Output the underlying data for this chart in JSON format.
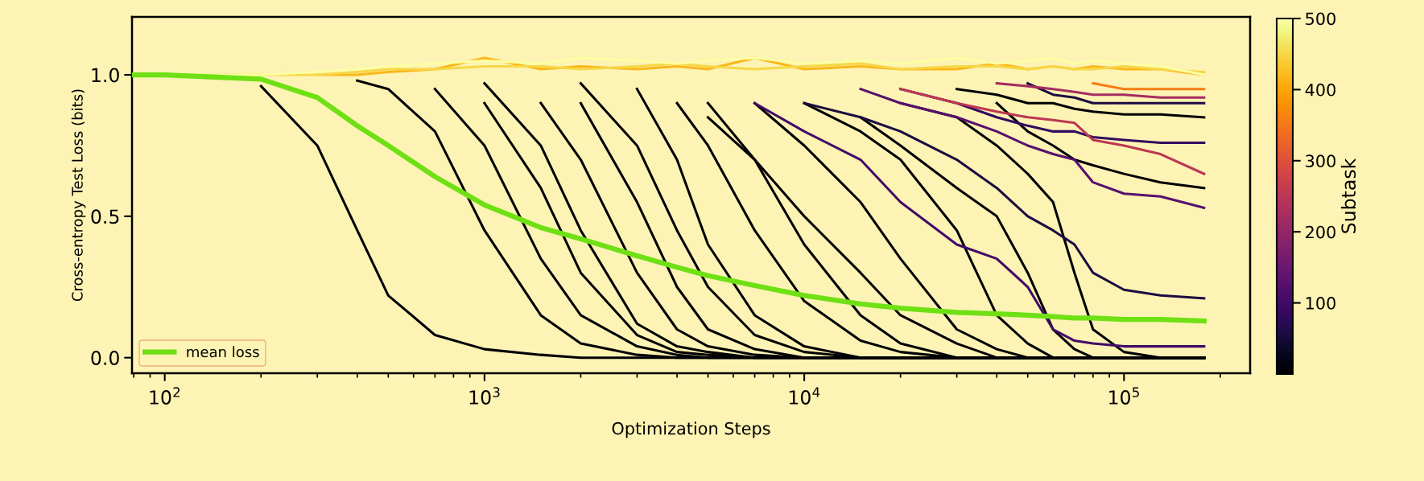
{
  "chart_data": {
    "type": "line",
    "xlabel": "Optimization Steps",
    "ylabel": "Cross-entropy Test Loss (bits)",
    "clabel": "Subtask",
    "log": "x",
    "xlim": [
      79,
      248000
    ],
    "xticks": [
      {
        "value": 100,
        "label": "10$^{2}$"
      },
      {
        "value": 1000,
        "label": "10$^{3}$"
      },
      {
        "value": 10000,
        "label": "10$^{4}$"
      },
      {
        "value": 100000,
        "label": "10$^{5}$"
      }
    ],
    "ylim": [
      -0.055,
      1.205
    ],
    "yticks": [
      {
        "value": 0,
        "label": "0.0"
      },
      {
        "value": 0.5,
        "label": "0.5"
      },
      {
        "value": 1,
        "label": "1.0"
      }
    ],
    "clim": [
      0,
      500
    ],
    "cticks": [
      100,
      200,
      300,
      400,
      500
    ],
    "grid": false,
    "legend": "bottom left",
    "line_style": "solid",
    "x": [
      80,
      100,
      200,
      300,
      400,
      500,
      700,
      1000,
      1500,
      2000,
      3000,
      4000,
      5000,
      7000,
      10000,
      15000,
      20000,
      30000,
      40000,
      50000,
      60000,
      70000,
      80000,
      100000,
      130000,
      178000
    ],
    "series": [
      {
        "color": "#000004",
        "x": [
          200,
          300,
          400,
          500,
          700,
          1000,
          1500,
          2000,
          3000,
          4000,
          5000,
          7000,
          10000,
          15000,
          20000,
          30000,
          40000,
          50000,
          60000,
          70000,
          80000,
          100000,
          130000,
          178000
        ],
        "values": [
          0.96,
          0.75,
          0.45,
          0.22,
          0.08,
          0.03,
          0.01,
          0,
          0,
          0,
          0,
          0,
          0,
          0,
          0,
          0,
          0,
          0,
          0,
          0,
          0,
          0,
          0,
          0
        ]
      },
      {
        "color": "#000004",
        "x": [
          400,
          500,
          700,
          1000,
          1500,
          2000,
          3000,
          4000,
          5000,
          7000,
          10000,
          15000,
          20000,
          30000,
          40000,
          50000,
          60000,
          70000,
          80000,
          100000,
          130000,
          178000
        ],
        "values": [
          0.98,
          0.95,
          0.8,
          0.45,
          0.15,
          0.05,
          0.01,
          0,
          0,
          0,
          0,
          0,
          0,
          0,
          0,
          0,
          0,
          0,
          0,
          0,
          0,
          0
        ]
      },
      {
        "color": "#000004",
        "x": [
          700,
          1000,
          1500,
          2000,
          3000,
          4000,
          5000,
          7000,
          10000,
          15000,
          20000,
          30000,
          40000,
          50000,
          60000,
          70000,
          80000,
          100000,
          130000,
          178000
        ],
        "values": [
          0.95,
          0.75,
          0.35,
          0.15,
          0.04,
          0.01,
          0,
          0,
          0,
          0,
          0,
          0,
          0,
          0,
          0,
          0,
          0,
          0,
          0,
          0
        ]
      },
      {
        "color": "#000004",
        "x": [
          1000,
          1500,
          2000,
          3000,
          4000,
          5000,
          7000,
          10000,
          15000,
          20000,
          30000,
          40000,
          50000,
          60000,
          70000,
          80000,
          100000,
          130000,
          178000
        ],
        "values": [
          0.9,
          0.6,
          0.3,
          0.08,
          0.02,
          0.01,
          0,
          0,
          0,
          0,
          0,
          0,
          0,
          0,
          0,
          0,
          0,
          0,
          0
        ]
      },
      {
        "color": "#000004",
        "x": [
          1000,
          1500,
          2000,
          3000,
          4000,
          5000,
          7000,
          10000,
          15000,
          20000,
          30000,
          40000,
          50000,
          60000,
          70000,
          80000,
          100000,
          130000,
          178000
        ],
        "values": [
          0.97,
          0.75,
          0.45,
          0.12,
          0.04,
          0.02,
          0,
          0,
          0,
          0,
          0,
          0,
          0,
          0,
          0,
          0,
          0,
          0,
          0
        ]
      },
      {
        "color": "#000004",
        "x": [
          1500,
          2000,
          3000,
          4000,
          5000,
          7000,
          10000,
          15000,
          20000,
          30000,
          40000,
          50000,
          60000,
          70000,
          80000,
          100000,
          130000,
          178000
        ],
        "values": [
          0.9,
          0.7,
          0.3,
          0.1,
          0.04,
          0.01,
          0,
          0,
          0,
          0,
          0,
          0,
          0,
          0,
          0,
          0,
          0,
          0
        ]
      },
      {
        "color": "#000004",
        "x": [
          2000,
          3000,
          4000,
          5000,
          7000,
          10000,
          15000,
          20000,
          30000,
          40000,
          50000,
          60000,
          70000,
          80000,
          100000,
          130000,
          178000
        ],
        "values": [
          0.9,
          0.55,
          0.25,
          0.1,
          0.03,
          0,
          0,
          0,
          0,
          0,
          0,
          0,
          0,
          0,
          0,
          0,
          0
        ]
      },
      {
        "color": "#000004",
        "x": [
          2000,
          3000,
          4000,
          5000,
          7000,
          10000,
          15000,
          20000,
          30000,
          40000,
          50000,
          60000,
          70000,
          80000,
          100000,
          130000,
          178000
        ],
        "values": [
          0.97,
          0.75,
          0.45,
          0.25,
          0.08,
          0.02,
          0,
          0,
          0,
          0,
          0,
          0,
          0,
          0,
          0,
          0,
          0
        ]
      },
      {
        "color": "#000004",
        "x": [
          3000,
          4000,
          5000,
          7000,
          10000,
          15000,
          20000,
          30000,
          40000,
          50000,
          60000,
          70000,
          80000,
          100000,
          130000,
          178000
        ],
        "values": [
          0.95,
          0.7,
          0.4,
          0.15,
          0.04,
          0,
          0,
          0,
          0,
          0,
          0,
          0,
          0,
          0,
          0,
          0
        ]
      },
      {
        "color": "#000004",
        "x": [
          4000,
          5000,
          7000,
          10000,
          15000,
          20000,
          30000,
          40000,
          50000,
          60000,
          70000,
          80000,
          100000,
          130000,
          178000
        ],
        "values": [
          0.9,
          0.75,
          0.45,
          0.2,
          0.06,
          0.02,
          0,
          0,
          0,
          0,
          0,
          0,
          0,
          0,
          0
        ]
      },
      {
        "color": "#000004",
        "x": [
          5000,
          7000,
          10000,
          15000,
          20000,
          30000,
          40000,
          50000,
          60000,
          70000,
          80000,
          100000,
          130000,
          178000
        ],
        "values": [
          0.9,
          0.7,
          0.4,
          0.15,
          0.05,
          0,
          0,
          0,
          0,
          0,
          0,
          0,
          0,
          0
        ]
      },
      {
        "color": "#000004",
        "x": [
          5000,
          7000,
          10000,
          15000,
          20000,
          30000,
          40000,
          50000,
          60000,
          70000,
          80000,
          100000,
          130000,
          178000
        ],
        "values": [
          0.85,
          0.7,
          0.5,
          0.3,
          0.15,
          0.05,
          0,
          0,
          0,
          0,
          0,
          0,
          0,
          0
        ]
      },
      {
        "color": "#000004",
        "x": [
          7000,
          10000,
          15000,
          20000,
          30000,
          40000,
          50000,
          60000,
          70000,
          80000,
          100000,
          130000,
          178000
        ],
        "values": [
          0.9,
          0.75,
          0.55,
          0.35,
          0.1,
          0.03,
          0,
          0,
          0,
          0,
          0,
          0,
          0
        ]
      },
      {
        "color": "#000004",
        "x": [
          10000,
          15000,
          20000,
          30000,
          40000,
          50000,
          60000,
          70000,
          80000,
          100000,
          130000,
          178000
        ],
        "values": [
          0.9,
          0.8,
          0.7,
          0.45,
          0.15,
          0.05,
          0,
          0,
          0,
          0,
          0,
          0
        ]
      },
      {
        "color": "#000004",
        "x": [
          15000,
          20000,
          30000,
          40000,
          50000,
          60000,
          70000,
          80000,
          100000,
          130000,
          178000
        ],
        "values": [
          0.85,
          0.75,
          0.6,
          0.5,
          0.3,
          0.1,
          0.03,
          0,
          0,
          0,
          0
        ]
      },
      {
        "color": "#000004",
        "x": [
          20000,
          30000,
          40000,
          50000,
          60000,
          70000,
          80000,
          100000,
          130000,
          178000
        ],
        "values": [
          0.9,
          0.85,
          0.75,
          0.65,
          0.55,
          0.3,
          0.1,
          0.02,
          0,
          0
        ]
      },
      {
        "color": "#000004",
        "x": [
          30000,
          40000,
          50000,
          60000,
          70000,
          80000,
          100000,
          130000,
          178000
        ],
        "values": [
          0.95,
          0.93,
          0.9,
          0.9,
          0.88,
          0.87,
          0.86,
          0.86,
          0.85
        ]
      },
      {
        "color": "#000004",
        "x": [
          40000,
          50000,
          60000,
          70000,
          80000,
          100000,
          130000,
          178000
        ],
        "values": [
          0.9,
          0.8,
          0.75,
          0.7,
          0.68,
          0.65,
          0.62,
          0.6
        ]
      },
      {
        "color": "#1b0c41",
        "x": [
          10000,
          15000,
          20000,
          30000,
          40000,
          50000,
          60000,
          70000,
          80000,
          100000,
          130000,
          178000
        ],
        "values": [
          0.9,
          0.85,
          0.8,
          0.7,
          0.6,
          0.5,
          0.45,
          0.4,
          0.3,
          0.24,
          0.22,
          0.21
        ]
      },
      {
        "color": "#1b0c41",
        "x": [
          50000,
          60000,
          70000,
          80000,
          100000,
          130000,
          178000
        ],
        "values": [
          0.97,
          0.93,
          0.92,
          0.9,
          0.9,
          0.9,
          0.9
        ]
      },
      {
        "color": "#420a68",
        "x": [
          7000,
          10000,
          15000,
          20000,
          30000,
          40000,
          50000,
          60000,
          70000,
          80000,
          100000,
          130000,
          178000
        ],
        "values": [
          0.9,
          0.8,
          0.7,
          0.55,
          0.4,
          0.35,
          0.25,
          0.1,
          0.06,
          0.05,
          0.04,
          0.04,
          0.04
        ]
      },
      {
        "color": "#320a5e",
        "x": [
          20000,
          30000,
          40000,
          50000,
          60000,
          70000,
          80000,
          100000,
          130000,
          178000
        ],
        "values": [
          0.95,
          0.9,
          0.85,
          0.82,
          0.8,
          0.8,
          0.78,
          0.77,
          0.76,
          0.76
        ]
      },
      {
        "color": "#57106e",
        "x": [
          15000,
          20000,
          30000,
          40000,
          50000,
          60000,
          70000,
          80000,
          100000,
          130000,
          178000
        ],
        "values": [
          0.95,
          0.9,
          0.85,
          0.8,
          0.75,
          0.72,
          0.7,
          0.62,
          0.58,
          0.57,
          0.53
        ]
      },
      {
        "color": "#a52c60",
        "x": [
          40000,
          50000,
          60000,
          70000,
          80000,
          100000,
          130000,
          178000
        ],
        "values": [
          0.97,
          0.96,
          0.95,
          0.94,
          0.93,
          0.93,
          0.92,
          0.92
        ]
      },
      {
        "color": "#bc3754",
        "x": [
          20000,
          30000,
          40000,
          50000,
          60000,
          70000,
          80000,
          100000,
          130000,
          178000
        ],
        "values": [
          0.95,
          0.9,
          0.87,
          0.85,
          0.84,
          0.83,
          0.77,
          0.75,
          0.72,
          0.65
        ]
      },
      {
        "color": "#f57d15",
        "x": [
          80000,
          100000,
          130000,
          178000
        ],
        "values": [
          0.97,
          0.95,
          0.95,
          0.95
        ]
      },
      {
        "color": "#fbb61a",
        "values": [
          null,
          null,
          null,
          1,
          1,
          1.01,
          1.02,
          1.06,
          1.02,
          1.03,
          1.02,
          1.03,
          1.02,
          1.06,
          1.02,
          1.03,
          1.02,
          1.02,
          1.04,
          1.02,
          1.03,
          1.02,
          1.03,
          1.02,
          1.02,
          1.0
        ]
      },
      {
        "color": "#f6d746",
        "values": [
          null,
          1,
          1,
          1,
          1.01,
          1.02,
          1.02,
          1.03,
          1.03,
          1.02,
          1.03,
          1.04,
          1.03,
          1.02,
          1.03,
          1.04,
          1.02,
          1.03,
          1.03,
          1.02,
          1.03,
          1.02,
          1.02,
          1.03,
          1.02,
          1.01
        ]
      },
      {
        "color": "#fcffa4",
        "values": [
          1,
          1,
          1,
          1.01,
          1.02,
          1.03,
          1.04,
          1.05,
          1.04,
          1.06,
          1.05,
          1.04,
          1.05,
          1.06,
          1.04,
          1.05,
          1.04,
          1.06,
          1.04,
          1.05,
          1.06,
          1.04,
          1.05,
          1.04,
          1.03,
          1.0
        ]
      },
      {
        "name": "mean loss",
        "color": "#6ee014",
        "values": [
          1,
          1,
          0.985,
          0.92,
          0.82,
          0.75,
          0.64,
          0.54,
          0.46,
          0.42,
          0.36,
          0.32,
          0.29,
          0.255,
          0.22,
          0.19,
          0.175,
          0.16,
          0.155,
          0.15,
          0.145,
          0.14,
          0.14,
          0.135,
          0.135,
          0.13
        ]
      }
    ]
  }
}
